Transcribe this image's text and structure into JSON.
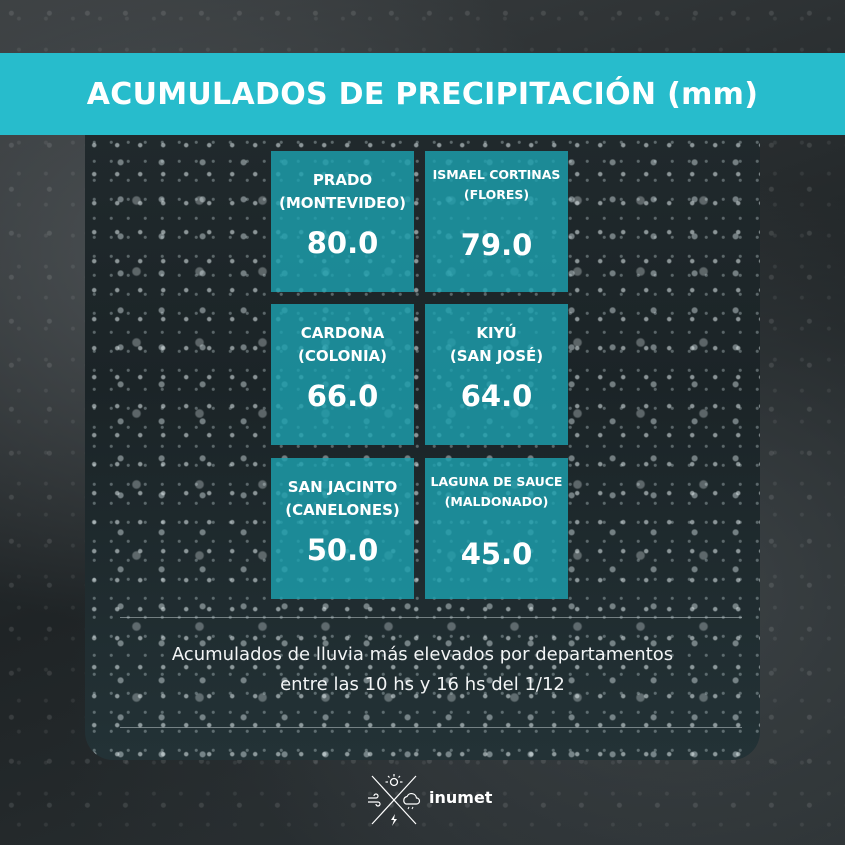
{
  "header": {
    "title": "ACUMULADOS DE PRECIPITACIÓN (mm)"
  },
  "stations": [
    {
      "line1": "PRADO",
      "line2": "(MONTEVIDEO)",
      "value": "80.0"
    },
    {
      "line1": "ISMAEL CORTINAS",
      "line2": "(FLORES)",
      "value": "79.0"
    },
    {
      "line1": "CARDONA",
      "line2": "(COLONIA)",
      "value": "66.0"
    },
    {
      "line1": "KIYÚ",
      "line2": "(SAN JOSÉ)",
      "value": "64.0"
    },
    {
      "line1": "SAN JACINTO",
      "line2": "(CANELONES)",
      "value": "50.0"
    },
    {
      "line1": "LAGUNA DE SAUCE",
      "line2": "(MALDONADO)",
      "value": "45.0"
    }
  ],
  "caption": {
    "line1": "Acumulados de lluvia más elevados por departamentos",
    "line2": "entre las 10 hs  y 16 hs del 1/12"
  },
  "logo": {
    "text": "inumet"
  },
  "colors": {
    "accent": "#27bccc",
    "card": "#1ca0af"
  }
}
